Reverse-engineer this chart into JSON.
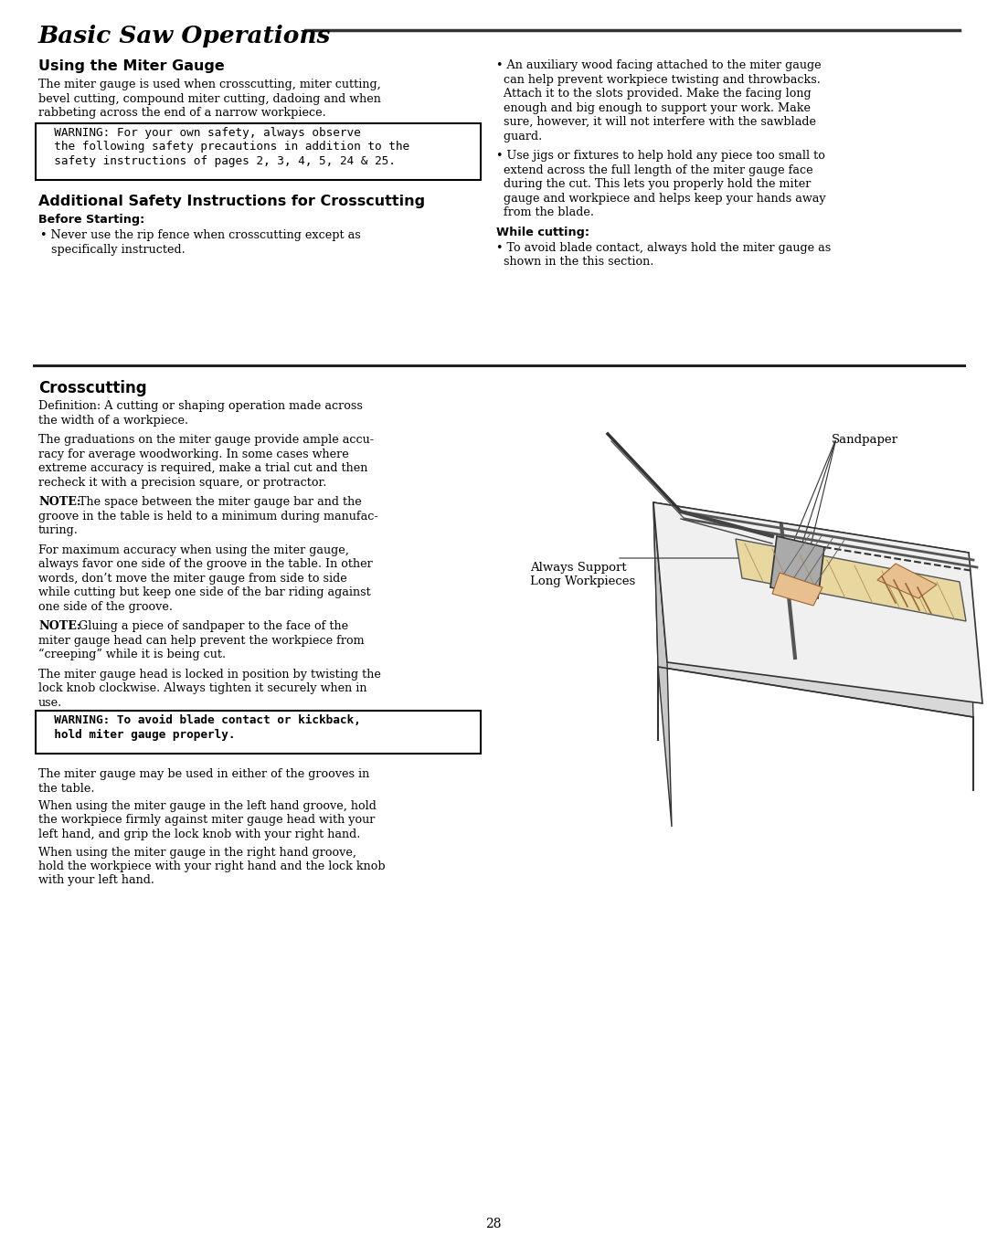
{
  "title": "Basic Saw Operations",
  "section1_heading": "Using the Miter Gauge",
  "section1_body_lines": [
    "The miter gauge is used when crosscutting, miter cutting,",
    "bevel cutting, compound miter cutting, dadoing and when",
    "rabbeting across the end of a narrow workpiece."
  ],
  "warning1_lines": [
    "  WARNING: For your own safety, always observe",
    "  the following safety precautions in addition to the",
    "  safety instructions of pages 2, 3, 4, 5, 24 & 25."
  ],
  "section2_heading": "Additional Safety Instructions for Crosscutting",
  "before_starting": "Before Starting:",
  "before_bullet_lines": [
    "• Never use the rip fence when crosscutting except as",
    "   specifically instructed."
  ],
  "right_bullet1_lines": [
    "• An auxiliary wood facing attached to the miter gauge",
    "  can help prevent workpiece twisting and throwbacks.",
    "  Attach it to the slots provided. Make the facing long",
    "  enough and big enough to support your work. Make",
    "  sure, however, it will not interfere with the sawblade",
    "  guard."
  ],
  "right_bullet2_lines": [
    "• Use jigs or fixtures to help hold any piece too small to",
    "  extend across the full length of the miter gauge face",
    "  during the cut. This lets you properly hold the miter",
    "  gauge and workpiece and helps keep your hands away",
    "  from the blade."
  ],
  "while_cutting": "While cutting:",
  "while_bullet_lines": [
    "• To avoid blade contact, always hold the miter gauge as",
    "  shown in the this section."
  ],
  "section3_heading": "Crosscutting",
  "crosscut_def_lines": [
    "Definition: A cutting or shaping operation made across",
    "the width of a workpiece."
  ],
  "crosscut_p1_lines": [
    "The graduations on the miter gauge provide ample accu-",
    "racy for average woodworking. In some cases where",
    "extreme accuracy is required, make a trial cut and then",
    "recheck it with a precision square, or protractor."
  ],
  "crosscut_note1_lines": [
    "NOTE: The space between the miter gauge bar and the",
    "groove in the table is held to a minimum during manufac-",
    "turing."
  ],
  "crosscut_p2_lines": [
    "For maximum accuracy when using the miter gauge,",
    "always favor one side of the groove in the table. In other",
    "words, don’t move the miter gauge from side to side",
    "while cutting but keep one side of the bar riding against",
    "one side of the groove."
  ],
  "crosscut_note2_lines": [
    "NOTE: Gluing a piece of sandpaper to the face of the",
    "miter gauge head can help prevent the workpiece from",
    "“creeping” while it is being cut."
  ],
  "crosscut_p3_lines": [
    "The miter gauge head is locked in position by twisting the",
    "lock knob clockwise. Always tighten it securely when in",
    "use."
  ],
  "warning2_lines": [
    "  WARNING: To avoid blade contact or kickback,",
    "  hold miter gauge properly."
  ],
  "crosscut_p4_lines": [
    "The miter gauge may be used in either of the grooves in",
    "the table."
  ],
  "crosscut_p5_lines": [
    "When using the miter gauge in the left hand groove, hold",
    "the workpiece firmly against miter gauge head with your",
    "left hand, and grip the lock knob with your right hand."
  ],
  "crosscut_p6_lines": [
    "When using the miter gauge in the right hand groove,",
    "hold the workpiece with your right hand and the lock knob",
    "with your left hand."
  ],
  "page_number": "28",
  "sandpaper_label": "Sandpaper",
  "always_support_label": "Always Support\nLong Workpieces"
}
